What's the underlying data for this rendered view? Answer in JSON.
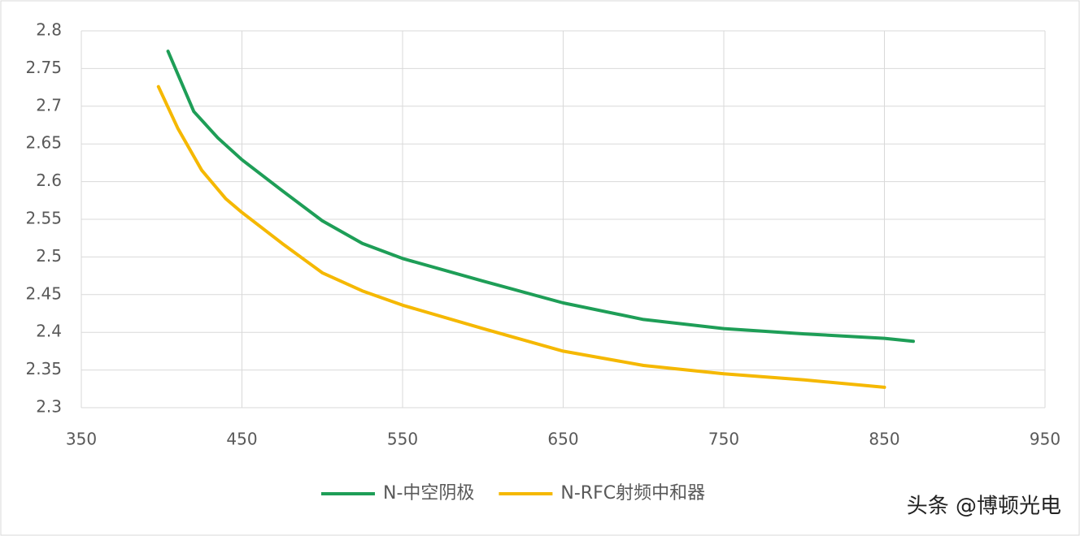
{
  "chart_data": {
    "type": "line",
    "xlim": [
      350,
      950
    ],
    "xticks": [
      350,
      450,
      550,
      650,
      750,
      850,
      950
    ],
    "ylim": [
      2.3,
      2.8
    ],
    "yticks": [
      2.3,
      2.35,
      2.4,
      2.45,
      2.5,
      2.55,
      2.6,
      2.65,
      2.7,
      2.75,
      2.8
    ],
    "grid": true,
    "legend": "bottom",
    "series": [
      {
        "name": "N-中空阴极",
        "color": "#1e9e57",
        "x": [
          404,
          420,
          435,
          450,
          475,
          500,
          525,
          550,
          600,
          650,
          700,
          750,
          800,
          850,
          868
        ],
        "values": [
          2.773,
          2.693,
          2.658,
          2.629,
          2.588,
          2.548,
          2.518,
          2.498,
          2.468,
          2.439,
          2.417,
          2.405,
          2.398,
          2.392,
          2.388
        ]
      },
      {
        "name": "N-RFC射频中和器",
        "color": "#f5b800",
        "x": [
          398,
          410,
          425,
          440,
          450,
          475,
          500,
          525,
          550,
          600,
          650,
          700,
          750,
          800,
          850
        ],
        "values": [
          2.726,
          2.671,
          2.615,
          2.577,
          2.559,
          2.518,
          2.479,
          2.455,
          2.436,
          2.405,
          2.375,
          2.356,
          2.345,
          2.337,
          2.327
        ]
      }
    ],
    "watermark": "头条 @博顿光电"
  }
}
